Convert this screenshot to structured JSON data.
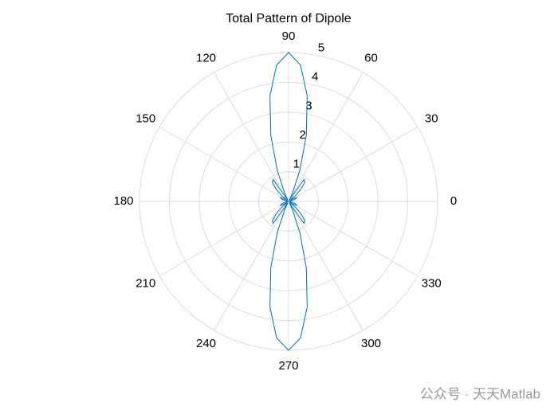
{
  "chart_data": {
    "type": "polar",
    "title": "Total Pattern of Dipole",
    "theta": [
      0,
      5,
      10,
      15,
      20,
      25,
      30,
      35,
      40,
      45,
      50,
      55,
      60,
      65,
      70,
      75,
      80,
      85,
      90,
      95,
      100,
      105,
      110,
      115,
      120,
      125,
      130,
      135,
      140,
      145,
      150,
      155,
      160,
      165,
      170,
      175,
      180,
      185,
      190,
      195,
      200,
      205,
      210,
      215,
      220,
      225,
      230,
      235,
      240,
      245,
      250,
      255,
      260,
      265,
      270,
      275,
      280,
      285,
      290,
      295,
      300,
      305,
      310,
      315,
      320,
      325,
      330,
      335,
      340,
      345,
      350,
      355,
      360
    ],
    "r": [
      0,
      0.02,
      0.05,
      0.15,
      0.25,
      0.3,
      0.2,
      0.05,
      0.3,
      0.6,
      0.85,
      0.9,
      0.05,
      0.3,
      1.1,
      2.3,
      3.6,
      4.6,
      5,
      4.6,
      3.6,
      2.3,
      1.1,
      0.3,
      0.05,
      0.9,
      0.85,
      0.6,
      0.3,
      0.05,
      0.2,
      0.3,
      0.25,
      0.15,
      0.05,
      0.02,
      0,
      0.02,
      0.05,
      0.15,
      0.25,
      0.3,
      0.2,
      0.05,
      0.3,
      0.6,
      0.85,
      0.9,
      0.05,
      0.3,
      1.1,
      2.3,
      3.6,
      4.6,
      5,
      4.6,
      3.6,
      2.3,
      1.1,
      0.3,
      0.05,
      0.9,
      0.85,
      0.6,
      0.3,
      0.05,
      0.2,
      0.3,
      0.25,
      0.15,
      0.05,
      0.02,
      0
    ],
    "color": "#0072bd",
    "rlim": [
      0,
      5
    ],
    "rticks": [
      1,
      2,
      3,
      4,
      5
    ],
    "thetaticks": [
      0,
      30,
      60,
      90,
      120,
      150,
      180,
      210,
      240,
      270,
      300,
      330
    ],
    "grid": true
  },
  "watermark": "公众号 · 天天Matlab"
}
